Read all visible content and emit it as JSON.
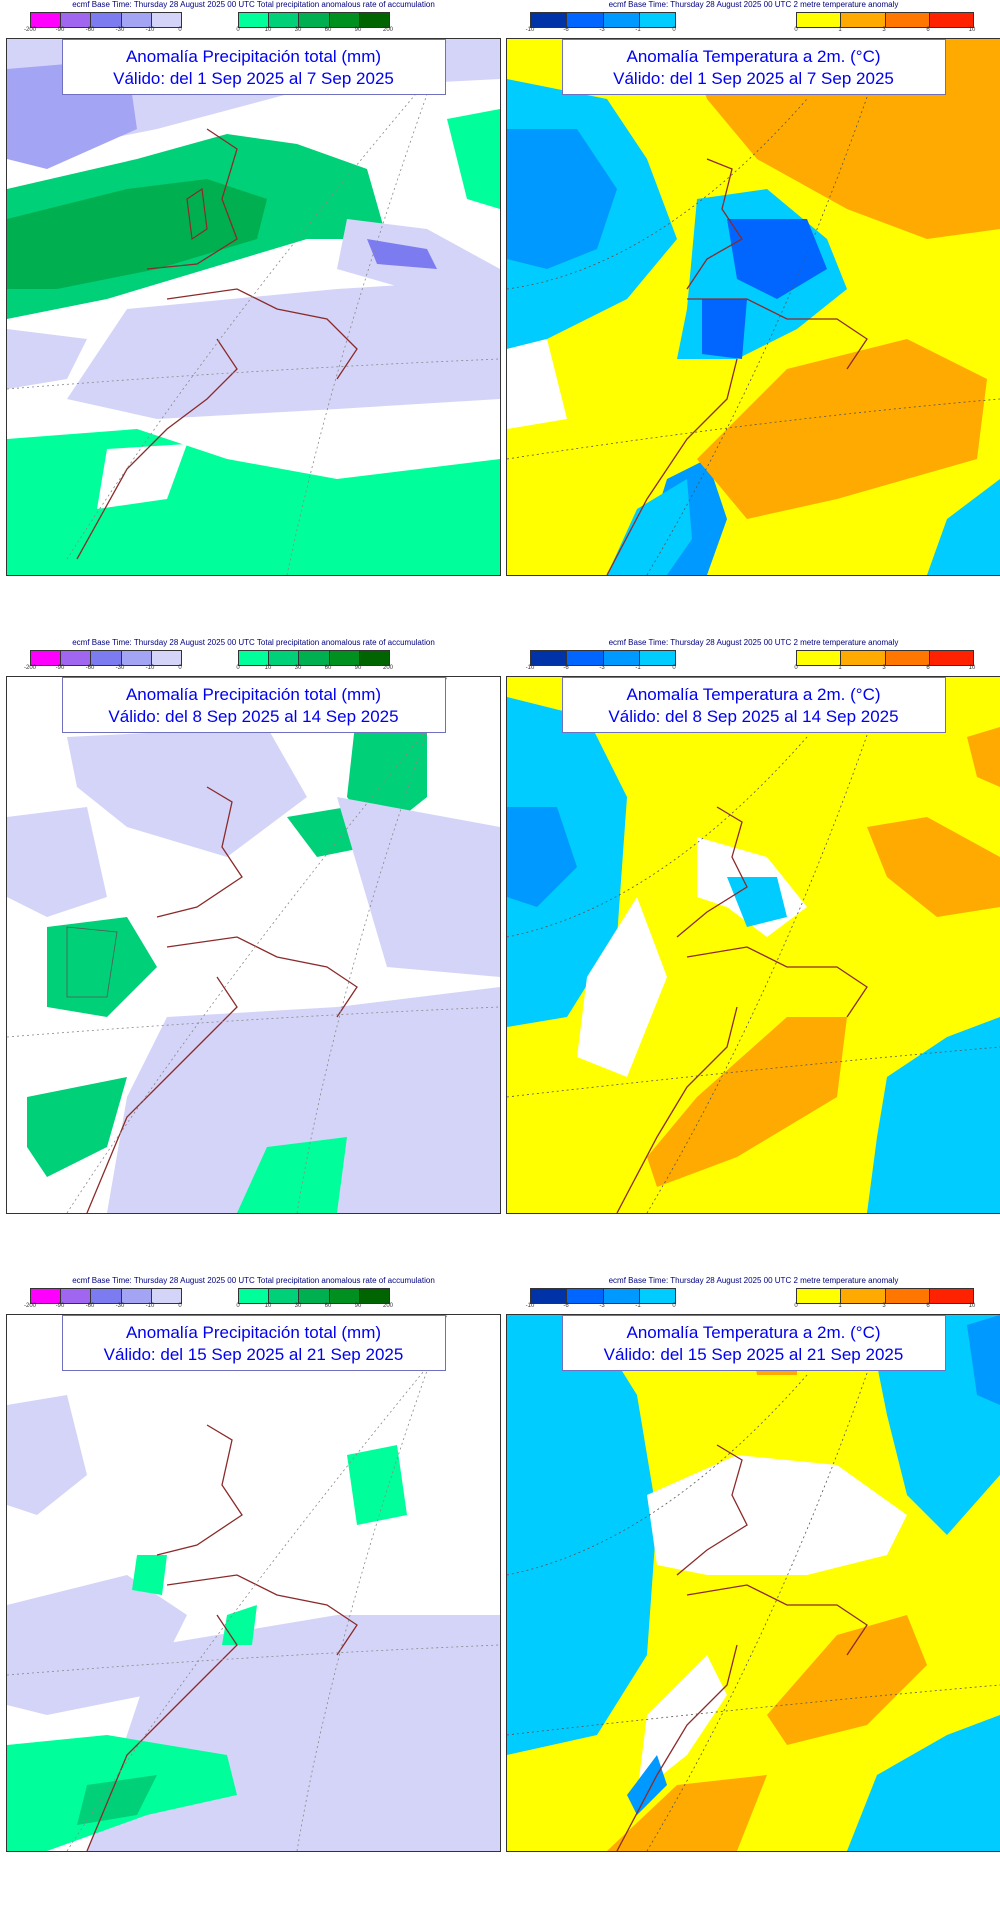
{
  "header": {
    "precip": "ecmf  Base Time: Thursday 28 August 2025 00 UTC Total precipitation anomalous rate of accumulation",
    "temp": "ecmf  Base Time: Thursday 28 August 2025 00 UTC 2 metre temperature anomaly"
  },
  "precip_scale": {
    "negative_colors": [
      "#ff00ff",
      "#a066f0",
      "#7c7cf0",
      "#a4a4f4",
      "#d4d4f8"
    ],
    "negative_ticks": [
      "-200",
      "-90",
      "-60",
      "-30",
      "-10",
      "0"
    ],
    "positive_colors": [
      "#00ff9a",
      "#00d077",
      "#00b050",
      "#009020",
      "#006400"
    ],
    "positive_ticks": [
      "0",
      "10",
      "30",
      "60",
      "90",
      "200"
    ]
  },
  "temp_scale": {
    "negative_colors": [
      "#0033a8",
      "#0066ff",
      "#0099ff",
      "#00ccff"
    ],
    "negative_ticks": [
      "-10",
      "-6",
      "-3",
      "-1",
      "0"
    ],
    "positive_colors": [
      "#ffff00",
      "#ffaa00",
      "#ff7700",
      "#ff2200"
    ],
    "positive_ticks": [
      "0",
      "1",
      "3",
      "6",
      "10"
    ]
  },
  "panels": [
    {
      "id": "p1",
      "title": "Anomalía Precipitación total (mm)",
      "subtitle": "Válido: del 1 Sep 2025 al 7 Sep 2025"
    },
    {
      "id": "t1",
      "title": "Anomalía Temperatura a 2m. (°C)",
      "subtitle": "Válido: del 1 Sep 2025 al 7 Sep 2025"
    },
    {
      "id": "p2",
      "title": "Anomalía Precipitación total (mm)",
      "subtitle": "Válido: del 8 Sep 2025 al 14 Sep 2025"
    },
    {
      "id": "t2",
      "title": "Anomalía Temperatura a 2m. (°C)",
      "subtitle": "Válido: del 8 Sep 2025 al 14 Sep 2025"
    },
    {
      "id": "p3",
      "title": "Anomalía Precipitación total (mm)",
      "subtitle": "Válido: del 15 Sep 2025 al 21 Sep 2025"
    },
    {
      "id": "t3",
      "title": "Anomalía Temperatura a 2m. (°C)",
      "subtitle": "Válido: del 15 Sep 2025 al 21 Sep 2025"
    }
  ],
  "map_colors": {
    "coastline": "#8b2a2a",
    "grid": "#888888"
  }
}
